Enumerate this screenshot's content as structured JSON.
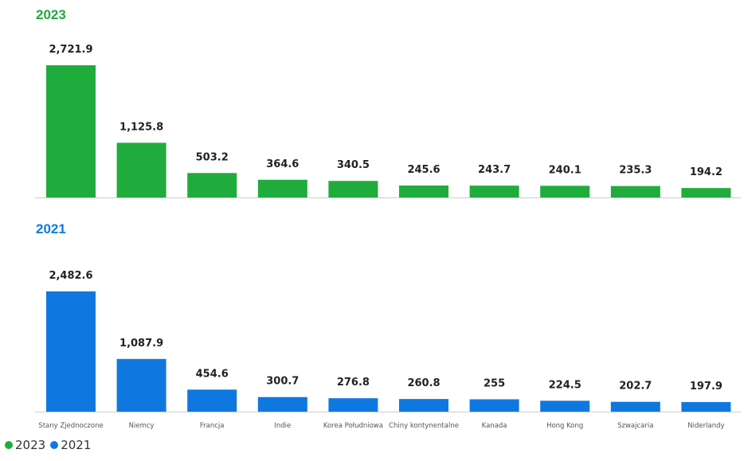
{
  "colors": {
    "series_2023": "#1fac3c",
    "series_2021": "#0f78e0",
    "axis": "#cccccc",
    "value_label": "#222222",
    "category_label": "#555555"
  },
  "chart_data": {
    "type": "bar",
    "categories": [
      "Stany Zjednoczone",
      "Niemcy",
      "Francja",
      "Indie",
      "Korea Południowa",
      "Chiny kontynentalne",
      "Kanada",
      "Hong Kong",
      "Szwajcaria",
      "Niderlandy"
    ],
    "series": [
      {
        "name": "2023",
        "values": [
          2721.9,
          1125.8,
          503.2,
          364.6,
          340.5,
          245.6,
          243.7,
          240.1,
          235.3,
          194.2
        ],
        "labels": [
          "2,721.9",
          "1,125.8",
          "503.2",
          "364.6",
          "340.5",
          "245.6",
          "243.7",
          "240.1",
          "235.3",
          "194.2"
        ]
      },
      {
        "name": "2021",
        "values": [
          2482.6,
          1087.9,
          454.6,
          300.7,
          276.8,
          260.8,
          255,
          224.5,
          202.7,
          197.9
        ],
        "labels": [
          "2,482.6",
          "1,087.9",
          "454.6",
          "300.7",
          "276.8",
          "260.8",
          "255",
          "224.5",
          "202.7",
          "197.9"
        ]
      }
    ],
    "grid": false,
    "legend_placement": "bottom-left"
  },
  "panels": [
    {
      "title": "2023"
    },
    {
      "title": "2021"
    }
  ],
  "legend": [
    {
      "label": "2023",
      "color": "#1fac3c"
    },
    {
      "label": "2021",
      "color": "#0f78e0"
    }
  ]
}
